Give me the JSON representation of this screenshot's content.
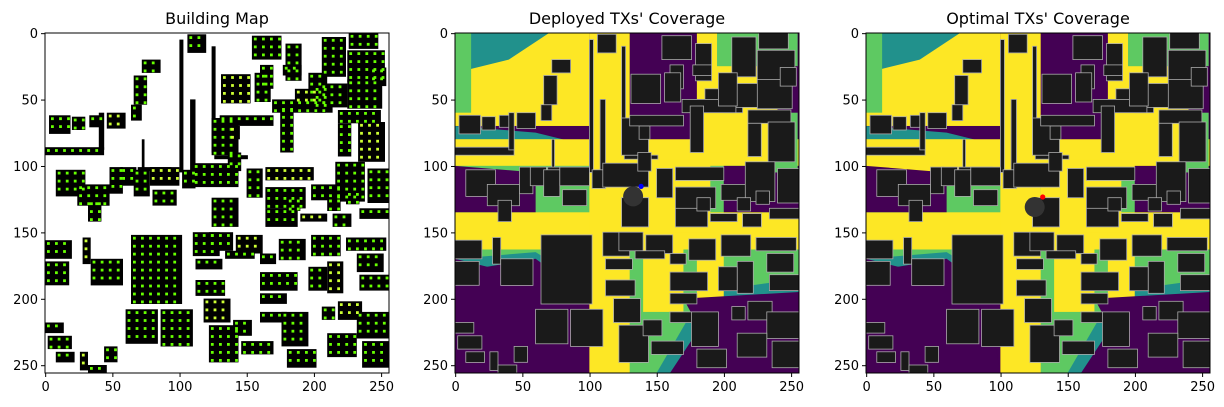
{
  "colors": {
    "building_black": "#000000",
    "building_dark": "#1a1a1a",
    "rooftop_green": "#66ff00",
    "rooftop_yellow": "#ccff33",
    "coverage_yellow": "#fde725",
    "coverage_lightgreen": "#5ec962",
    "coverage_teal": "#21918c",
    "coverage_purple": "#440154",
    "deployed_tx": "#0000ff",
    "optimal_tx": "#ff0000",
    "tx_disc": "#333333"
  },
  "chart_data": [
    {
      "type": "heatmap",
      "title": "Building Map",
      "xlim": [
        0,
        255
      ],
      "ylim": [
        255,
        0
      ],
      "x_ticks": [
        0,
        50,
        100,
        150,
        200,
        250
      ],
      "y_ticks": [
        0,
        50,
        100,
        150,
        200,
        250
      ],
      "grid": false
    },
    {
      "type": "heatmap",
      "title": "Deployed TXs' Coverage",
      "xlim": [
        0,
        255
      ],
      "ylim": [
        255,
        0
      ],
      "x_ticks": [
        0,
        50,
        100,
        150,
        200,
        250
      ],
      "y_ticks": [
        0,
        50,
        100,
        150,
        200,
        250
      ],
      "grid": false,
      "transmitter": {
        "x": 138,
        "y": 115,
        "color": "blue"
      }
    },
    {
      "type": "heatmap",
      "title": "Optimal TXs' Coverage",
      "xlim": [
        0,
        255
      ],
      "ylim": [
        255,
        0
      ],
      "x_ticks": [
        0,
        50,
        100,
        150,
        200,
        250
      ],
      "y_ticks": [
        0,
        50,
        100,
        150,
        200,
        250
      ],
      "grid": false,
      "transmitter": {
        "x": 131,
        "y": 123,
        "color": "red"
      }
    }
  ]
}
